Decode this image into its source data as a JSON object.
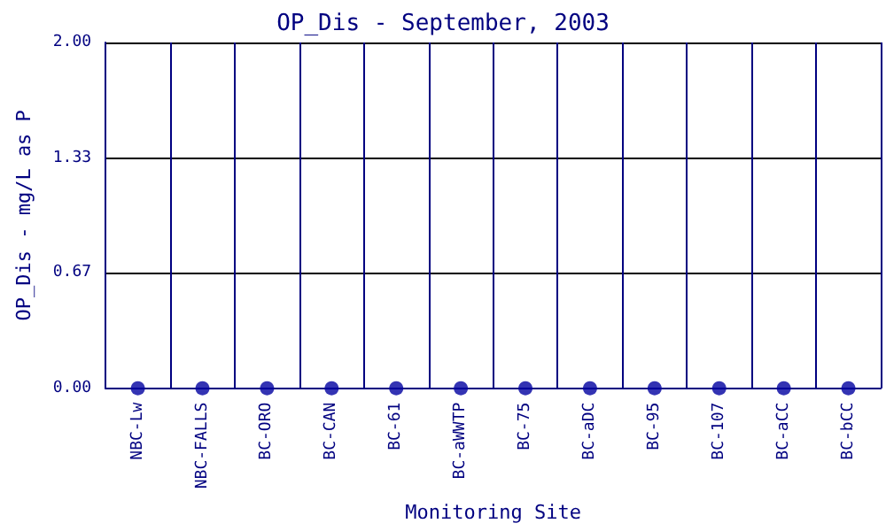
{
  "chart_data": {
    "type": "scatter",
    "title": "OP_Dis - September, 2003",
    "xlabel": "Monitoring Site",
    "ylabel": "OP_Dis - mg/L as P",
    "categories": [
      "NBC-Lw",
      "NBC-FALLS",
      "BC-ORO",
      "BC-CAN",
      "BC-61",
      "BC-aWWTP",
      "BC-75",
      "BC-aDC",
      "BC-95",
      "BC-107",
      "BC-aCC",
      "BC-bCC"
    ],
    "series": [
      {
        "color": "#0000a0",
        "values": [
          0,
          0,
          0,
          0,
          0,
          0,
          0,
          0,
          0,
          0,
          0,
          0
        ]
      }
    ],
    "ylim": [
      0,
      2
    ],
    "yticks": [
      {
        "value": 0,
        "label": "0.00"
      },
      {
        "value": 0.67,
        "label": "0.67"
      },
      {
        "value": 1.33,
        "label": "1.33"
      },
      {
        "value": 2,
        "label": "2.00"
      }
    ],
    "grid": true,
    "marker": "circle"
  }
}
